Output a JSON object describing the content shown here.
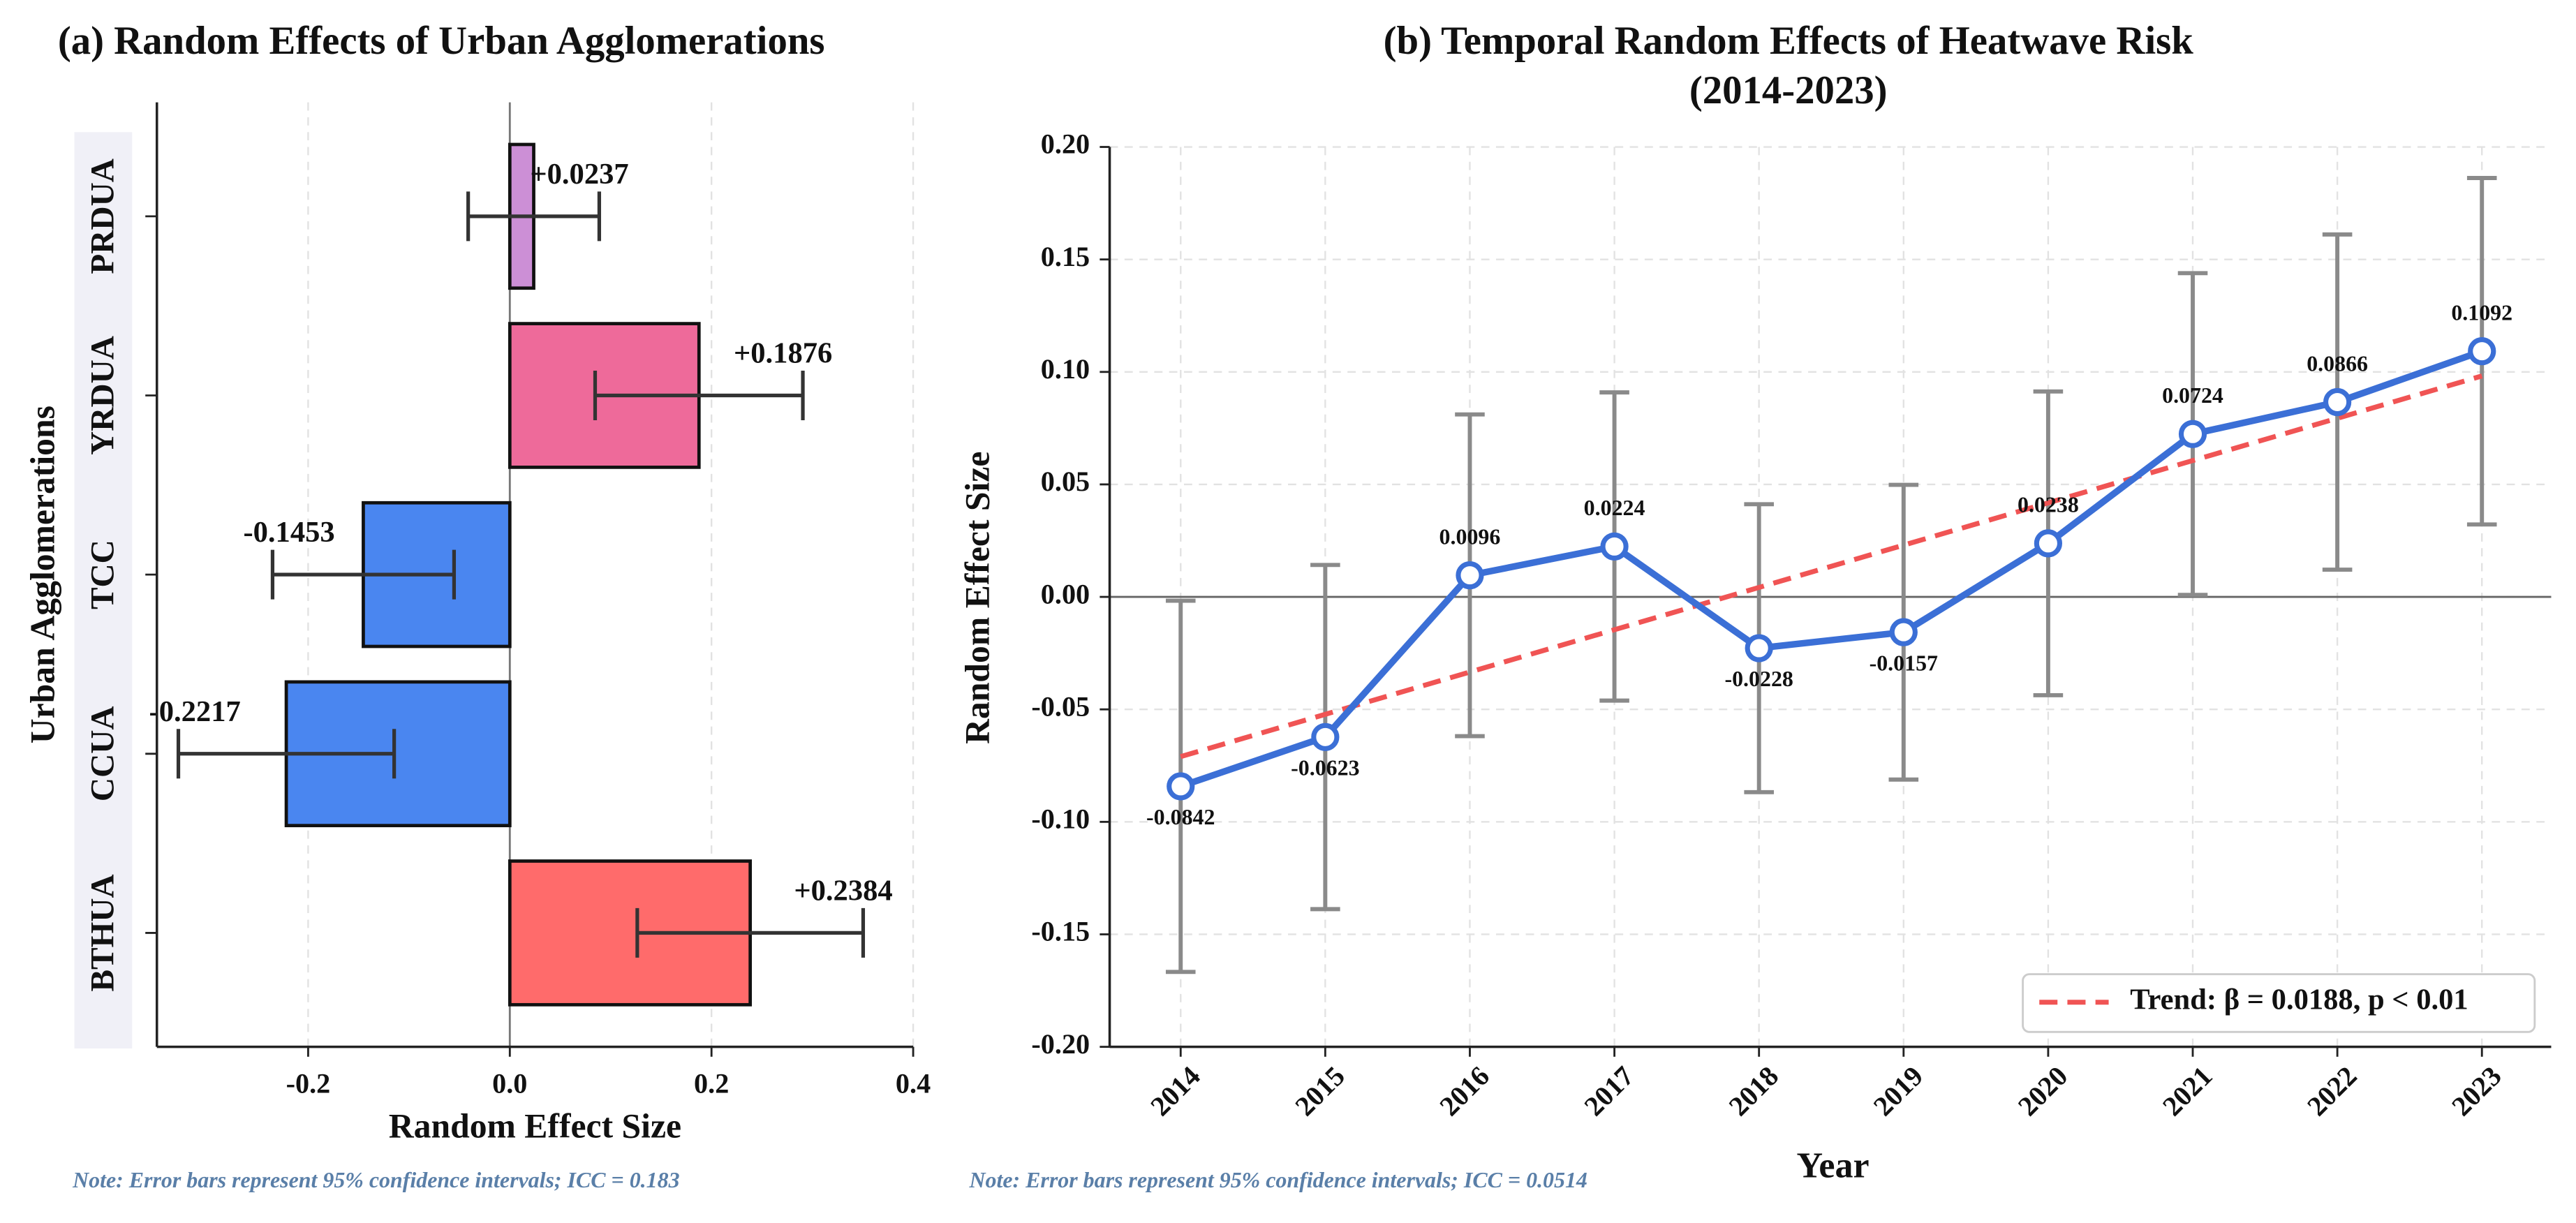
{
  "chart_data": [
    {
      "type": "barh",
      "title": "(a) Random Effects of Urban Agglomerations",
      "xlabel": "Random Effect Size",
      "ylabel": "Urban Agglomerations",
      "note": "Note: Error bars represent 95% confidence intervals; ICC = 0.183",
      "categories": [
        "BTHUA",
        "CCUA",
        "TCC",
        "YRDUA",
        "PRDUA"
      ],
      "values": [
        0.2384,
        -0.2217,
        -0.1453,
        0.1876,
        0.0237
      ],
      "value_labels": [
        "+0.2384",
        "-0.2217",
        "-0.1453",
        "+0.1876",
        "+0.0237"
      ],
      "errors": [
        0.112,
        0.107,
        0.09,
        0.103,
        0.065
      ],
      "colors": [
        "#ff6b6b",
        "#4a86f0",
        "#4a86f0",
        "#ee6a9a",
        "#cc8fd6"
      ],
      "xlim": [
        -0.35,
        0.4
      ],
      "xticks": [
        -0.2,
        {
          "value": 0,
          "label": "0.0"
        },
        0.2,
        0.4
      ],
      "grid": true
    },
    {
      "type": "line",
      "title": [
        "(b)  Temporal Random Effects of Heatwave Risk",
        "(2014-2023)"
      ],
      "xlabel": "Year",
      "ylabel": "Random Effect Size",
      "note": "Note: Error bars represent 95% confidence intervals; ICC = 0.0514",
      "categories": [
        "2014",
        "2015",
        "2016",
        "2017",
        "2018",
        "2019",
        "2020",
        "2021",
        "2022",
        "2023"
      ],
      "values": [
        -0.0842,
        -0.0623,
        0.0096,
        0.0224,
        -0.0228,
        -0.0157,
        0.0238,
        0.0724,
        0.0866,
        0.1092
      ],
      "errors": [
        0.0825,
        0.0765,
        0.0715,
        0.0685,
        0.064,
        0.0655,
        0.0675,
        0.0715,
        0.0745,
        0.077
      ],
      "color": "#3b6fd6",
      "error_color": "#8a8a8a",
      "trend": {
        "name": "Trend: β = 0.0188, p < 0.01",
        "color": "#f05454",
        "values": [
          -0.071,
          -0.0522,
          -0.0334,
          -0.0146,
          0.0042,
          0.023,
          0.0418,
          0.0606,
          0.0794,
          0.0982
        ]
      },
      "legend": "lower right",
      "ylim": [
        -0.2,
        0.2
      ],
      "yticks": [
        {
          "value": -0.2,
          "label": "-0.20"
        },
        {
          "value": -0.15,
          "label": "-0.15"
        },
        {
          "value": -0.1,
          "label": "-0.10"
        },
        {
          "value": -0.05,
          "label": "-0.05"
        },
        {
          "value": 0,
          "label": "0.00"
        },
        {
          "value": 0.05,
          "label": "0.05"
        },
        {
          "value": 0.1,
          "label": "0.10"
        },
        {
          "value": 0.15,
          "label": "0.15"
        },
        {
          "value": 0.2,
          "label": "0.20"
        }
      ],
      "grid": true
    }
  ]
}
